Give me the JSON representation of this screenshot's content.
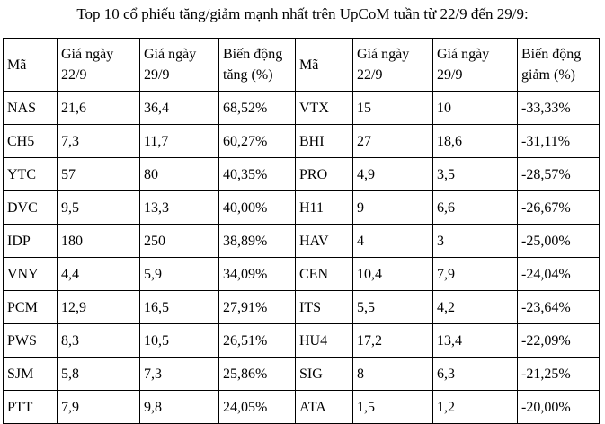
{
  "title": "Top 10 cổ phiếu tăng/giảm mạnh nhất trên UpCoM tuần từ 22/9 đến 29/9:",
  "colors": {
    "background": "#ffffff",
    "text": "#000000",
    "border": "#000000"
  },
  "table": {
    "headers": [
      "Mã",
      "Giá ngày 22/9",
      "Giá ngày 29/9",
      "Biến động tăng (%)",
      "Mã",
      "Giá ngày 22/9",
      "Giá ngày 29/9",
      "Biến động giảm (%)"
    ],
    "rows": [
      [
        "NAS",
        "21,6",
        "36,4",
        "68,52%",
        "VTX",
        "15",
        "10",
        "-33,33%"
      ],
      [
        "CH5",
        "7,3",
        "11,7",
        "60,27%",
        "BHI",
        "27",
        "18,6",
        "-31,11%"
      ],
      [
        "YTC",
        "57",
        "80",
        "40,35%",
        "PRO",
        "4,9",
        "3,5",
        "-28,57%"
      ],
      [
        "DVC",
        "9,5",
        "13,3",
        "40,00%",
        "H11",
        "9",
        "6,6",
        "-26,67%"
      ],
      [
        "IDP",
        "180",
        "250",
        "38,89%",
        "HAV",
        "4",
        "3",
        "-25,00%"
      ],
      [
        "VNY",
        "4,4",
        "5,9",
        "34,09%",
        "CEN",
        "10,4",
        "7,9",
        "-24,04%"
      ],
      [
        "PCM",
        "12,9",
        "16,5",
        "27,91%",
        "ITS",
        "5,5",
        "4,2",
        "-23,64%"
      ],
      [
        "PWS",
        "8,3",
        "10,5",
        "26,51%",
        "HU4",
        "17,2",
        "13,4",
        "-22,09%"
      ],
      [
        "SJM",
        "5,8",
        "7,3",
        "25,86%",
        "SIG",
        "8",
        "6,3",
        "-21,25%"
      ],
      [
        "PTT",
        "7,9",
        "9,8",
        "24,05%",
        "ATA",
        "1,5",
        "1,2",
        "-20,00%"
      ]
    ]
  }
}
